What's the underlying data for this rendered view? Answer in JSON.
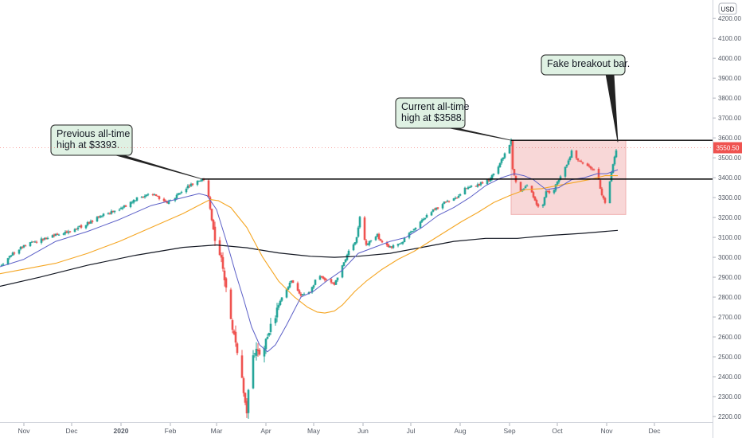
{
  "chart_data": {
    "type": "candlestick",
    "currency_label": "USD",
    "ylim": [
      2180,
      4290
    ],
    "y_ticks": [
      2200,
      2300,
      2400,
      2500,
      2600,
      2700,
      2800,
      2900,
      3000,
      3100,
      3200,
      3300,
      3400,
      3500,
      3600,
      3700,
      3800,
      3900,
      4000,
      4100,
      4200
    ],
    "y_tick_labels": [
      "2200.00",
      "2300.00",
      "2400.00",
      "2500.00",
      "2600.00",
      "2700.00",
      "2800.00",
      "2900.00",
      "3000.00",
      "3100.00",
      "3200.00",
      "3300.00",
      "3400.00",
      "3500.00",
      "3600.00",
      "3700.00",
      "3800.00",
      "3900.00",
      "4000.00",
      "4100.00",
      "4200.00"
    ],
    "x_ticks": [
      {
        "label": "Nov",
        "day": 10,
        "bold": false
      },
      {
        "label": "Dec",
        "day": 40,
        "bold": false
      },
      {
        "label": "2020",
        "day": 71,
        "bold": true
      },
      {
        "label": "Feb",
        "day": 102,
        "bold": false
      },
      {
        "label": "Mar",
        "day": 131,
        "bold": false
      },
      {
        "label": "Apr",
        "day": 162,
        "bold": false
      },
      {
        "label": "May",
        "day": 192,
        "bold": false
      },
      {
        "label": "Jun",
        "day": 223,
        "bold": false
      },
      {
        "label": "Jul",
        "day": 253,
        "bold": false
      },
      {
        "label": "Aug",
        "day": 284,
        "bold": false
      },
      {
        "label": "Sep",
        "day": 315,
        "bold": false
      },
      {
        "label": "Oct",
        "day": 345,
        "bold": false
      },
      {
        "label": "Nov",
        "day": 376,
        "bold": false
      },
      {
        "label": "Dec",
        "day": 406,
        "bold": false
      }
    ],
    "price_path": [
      [
        -10,
        2900
      ],
      [
        0,
        3000
      ],
      [
        10,
        3060
      ],
      [
        20,
        3085
      ],
      [
        30,
        3115
      ],
      [
        40,
        3135
      ],
      [
        50,
        3170
      ],
      [
        60,
        3215
      ],
      [
        70,
        3240
      ],
      [
        82,
        3300
      ],
      [
        90,
        3325
      ],
      [
        100,
        3270
      ],
      [
        112,
        3350
      ],
      [
        122,
        3393
      ],
      [
        124,
        3380
      ],
      [
        126,
        3300
      ],
      [
        128,
        3180
      ],
      [
        131,
        3050
      ],
      [
        135,
        2960
      ],
      [
        139,
        2750
      ],
      [
        142,
        2590
      ],
      [
        145,
        2480
      ],
      [
        148,
        2310
      ],
      [
        150,
        2237
      ],
      [
        152,
        2470
      ],
      [
        155,
        2540
      ],
      [
        160,
        2500
      ],
      [
        163,
        2620
      ],
      [
        167,
        2700
      ],
      [
        172,
        2800
      ],
      [
        178,
        2880
      ],
      [
        184,
        2810
      ],
      [
        190,
        2830
      ],
      [
        195,
        2920
      ],
      [
        200,
        2880
      ],
      [
        205,
        2860
      ],
      [
        210,
        2960
      ],
      [
        215,
        3045
      ],
      [
        219,
        3095
      ],
      [
        221,
        3200
      ],
      [
        223,
        3120
      ],
      [
        225,
        3060
      ],
      [
        228,
        3090
      ],
      [
        232,
        3110
      ],
      [
        236,
        3060
      ],
      [
        240,
        3050
      ],
      [
        244,
        3060
      ],
      [
        248,
        3080
      ],
      [
        253,
        3130
      ],
      [
        258,
        3165
      ],
      [
        265,
        3230
      ],
      [
        270,
        3250
      ],
      [
        275,
        3280
      ],
      [
        282,
        3300
      ],
      [
        287,
        3350
      ],
      [
        294,
        3360
      ],
      [
        298,
        3375
      ],
      [
        302,
        3390
      ],
      [
        307,
        3440
      ],
      [
        310,
        3490
      ],
      [
        314,
        3550
      ],
      [
        316,
        3588
      ],
      [
        317,
        3450
      ],
      [
        319,
        3380
      ],
      [
        322,
        3330
      ],
      [
        325,
        3360
      ],
      [
        328,
        3350
      ],
      [
        330,
        3300
      ],
      [
        333,
        3250
      ],
      [
        336,
        3270
      ],
      [
        338,
        3330
      ],
      [
        341,
        3310
      ],
      [
        344,
        3360
      ],
      [
        347,
        3410
      ],
      [
        349,
        3440
      ],
      [
        352,
        3480
      ],
      [
        354,
        3530
      ],
      [
        357,
        3500
      ],
      [
        360,
        3480
      ],
      [
        363,
        3470
      ],
      [
        366,
        3450
      ],
      [
        369,
        3430
      ],
      [
        371,
        3390
      ],
      [
        373,
        3310
      ],
      [
        375,
        3270
      ],
      [
        377,
        3350
      ],
      [
        379,
        3420
      ],
      [
        381,
        3510
      ],
      [
        383,
        3550
      ]
    ],
    "ma_20": [
      [
        -10,
        2940
      ],
      [
        10,
        2990
      ],
      [
        30,
        3080
      ],
      [
        50,
        3130
      ],
      [
        70,
        3190
      ],
      [
        90,
        3260
      ],
      [
        110,
        3300
      ],
      [
        120,
        3320
      ],
      [
        125,
        3310
      ],
      [
        131,
        3240
      ],
      [
        138,
        3060
      ],
      [
        143,
        2920
      ],
      [
        148,
        2790
      ],
      [
        153,
        2650
      ],
      [
        158,
        2560
      ],
      [
        163,
        2525
      ],
      [
        168,
        2560
      ],
      [
        175,
        2660
      ],
      [
        184,
        2800
      ],
      [
        192,
        2830
      ],
      [
        200,
        2880
      ],
      [
        210,
        2935
      ],
      [
        220,
        3020
      ],
      [
        230,
        3050
      ],
      [
        240,
        3080
      ],
      [
        250,
        3100
      ],
      [
        260,
        3150
      ],
      [
        270,
        3210
      ],
      [
        280,
        3250
      ],
      [
        290,
        3300
      ],
      [
        300,
        3360
      ],
      [
        310,
        3400
      ],
      [
        318,
        3420
      ],
      [
        324,
        3410
      ],
      [
        330,
        3390
      ],
      [
        338,
        3340
      ],
      [
        346,
        3350
      ],
      [
        354,
        3390
      ],
      [
        362,
        3400
      ],
      [
        370,
        3420
      ],
      [
        376,
        3420
      ],
      [
        383,
        3440
      ]
    ],
    "ma_50": [
      [
        -10,
        2910
      ],
      [
        10,
        2940
      ],
      [
        30,
        2970
      ],
      [
        50,
        3020
      ],
      [
        70,
        3080
      ],
      [
        90,
        3150
      ],
      [
        110,
        3220
      ],
      [
        122,
        3270
      ],
      [
        127,
        3290
      ],
      [
        132,
        3285
      ],
      [
        140,
        3250
      ],
      [
        150,
        3150
      ],
      [
        160,
        3000
      ],
      [
        170,
        2880
      ],
      [
        180,
        2800
      ],
      [
        188,
        2750
      ],
      [
        194,
        2725
      ],
      [
        199,
        2720
      ],
      [
        205,
        2730
      ],
      [
        210,
        2760
      ],
      [
        218,
        2830
      ],
      [
        225,
        2880
      ],
      [
        235,
        2940
      ],
      [
        245,
        2990
      ],
      [
        255,
        3030
      ],
      [
        265,
        3080
      ],
      [
        275,
        3130
      ],
      [
        285,
        3180
      ],
      [
        295,
        3225
      ],
      [
        305,
        3275
      ],
      [
        315,
        3310
      ],
      [
        325,
        3340
      ],
      [
        335,
        3345
      ],
      [
        345,
        3360
      ],
      [
        355,
        3375
      ],
      [
        365,
        3390
      ],
      [
        375,
        3410
      ],
      [
        383,
        3410
      ]
    ],
    "ma_200": [
      [
        -10,
        2845
      ],
      [
        20,
        2900
      ],
      [
        50,
        2960
      ],
      [
        80,
        3010
      ],
      [
        110,
        3050
      ],
      [
        131,
        3062
      ],
      [
        150,
        3048
      ],
      [
        170,
        3022
      ],
      [
        190,
        3005
      ],
      [
        205,
        3000
      ],
      [
        220,
        3005
      ],
      [
        240,
        3020
      ],
      [
        260,
        3050
      ],
      [
        280,
        3080
      ],
      [
        300,
        3095
      ],
      [
        320,
        3095
      ],
      [
        340,
        3110
      ],
      [
        360,
        3120
      ],
      [
        383,
        3135
      ]
    ],
    "horizontal_levels": [
      {
        "name": "previous-ath",
        "value": 3393,
        "from_day": 122
      },
      {
        "name": "current-ath",
        "value": 3588,
        "from_day": 316
      }
    ],
    "range_box": {
      "day_from": 316,
      "day_to": 388,
      "value_top": 3588,
      "value_bottom": 3215
    },
    "current_price": {
      "label": "3550.50",
      "value": 3550.5
    },
    "annotations": [
      {
        "name": "previous-ath-callout",
        "lines": [
          "Previous all-time",
          "high at $3393."
        ],
        "target_day": 122,
        "target_value": 3393
      },
      {
        "name": "current-ath-callout",
        "lines": [
          "Current all-time",
          "high at $3588."
        ],
        "target_day": 316,
        "target_value": 3588
      },
      {
        "name": "fake-breakout-callout",
        "lines": [
          "Fake breakout bar."
        ],
        "target_day": 383,
        "target_value": 3580
      }
    ],
    "colors": {
      "bullish": "#26a69a",
      "bearish": "#ef5350",
      "ma_20": "#5b5fc7",
      "ma_50": "#f5a623",
      "ma_200": "#131722",
      "level": "#000000",
      "range_fill": "#f6c9c9",
      "range_stroke": "#efb0b0",
      "callout_fill": "#dff1e3",
      "callout_stroke": "#222222",
      "price_tag": "#ef5350"
    }
  }
}
